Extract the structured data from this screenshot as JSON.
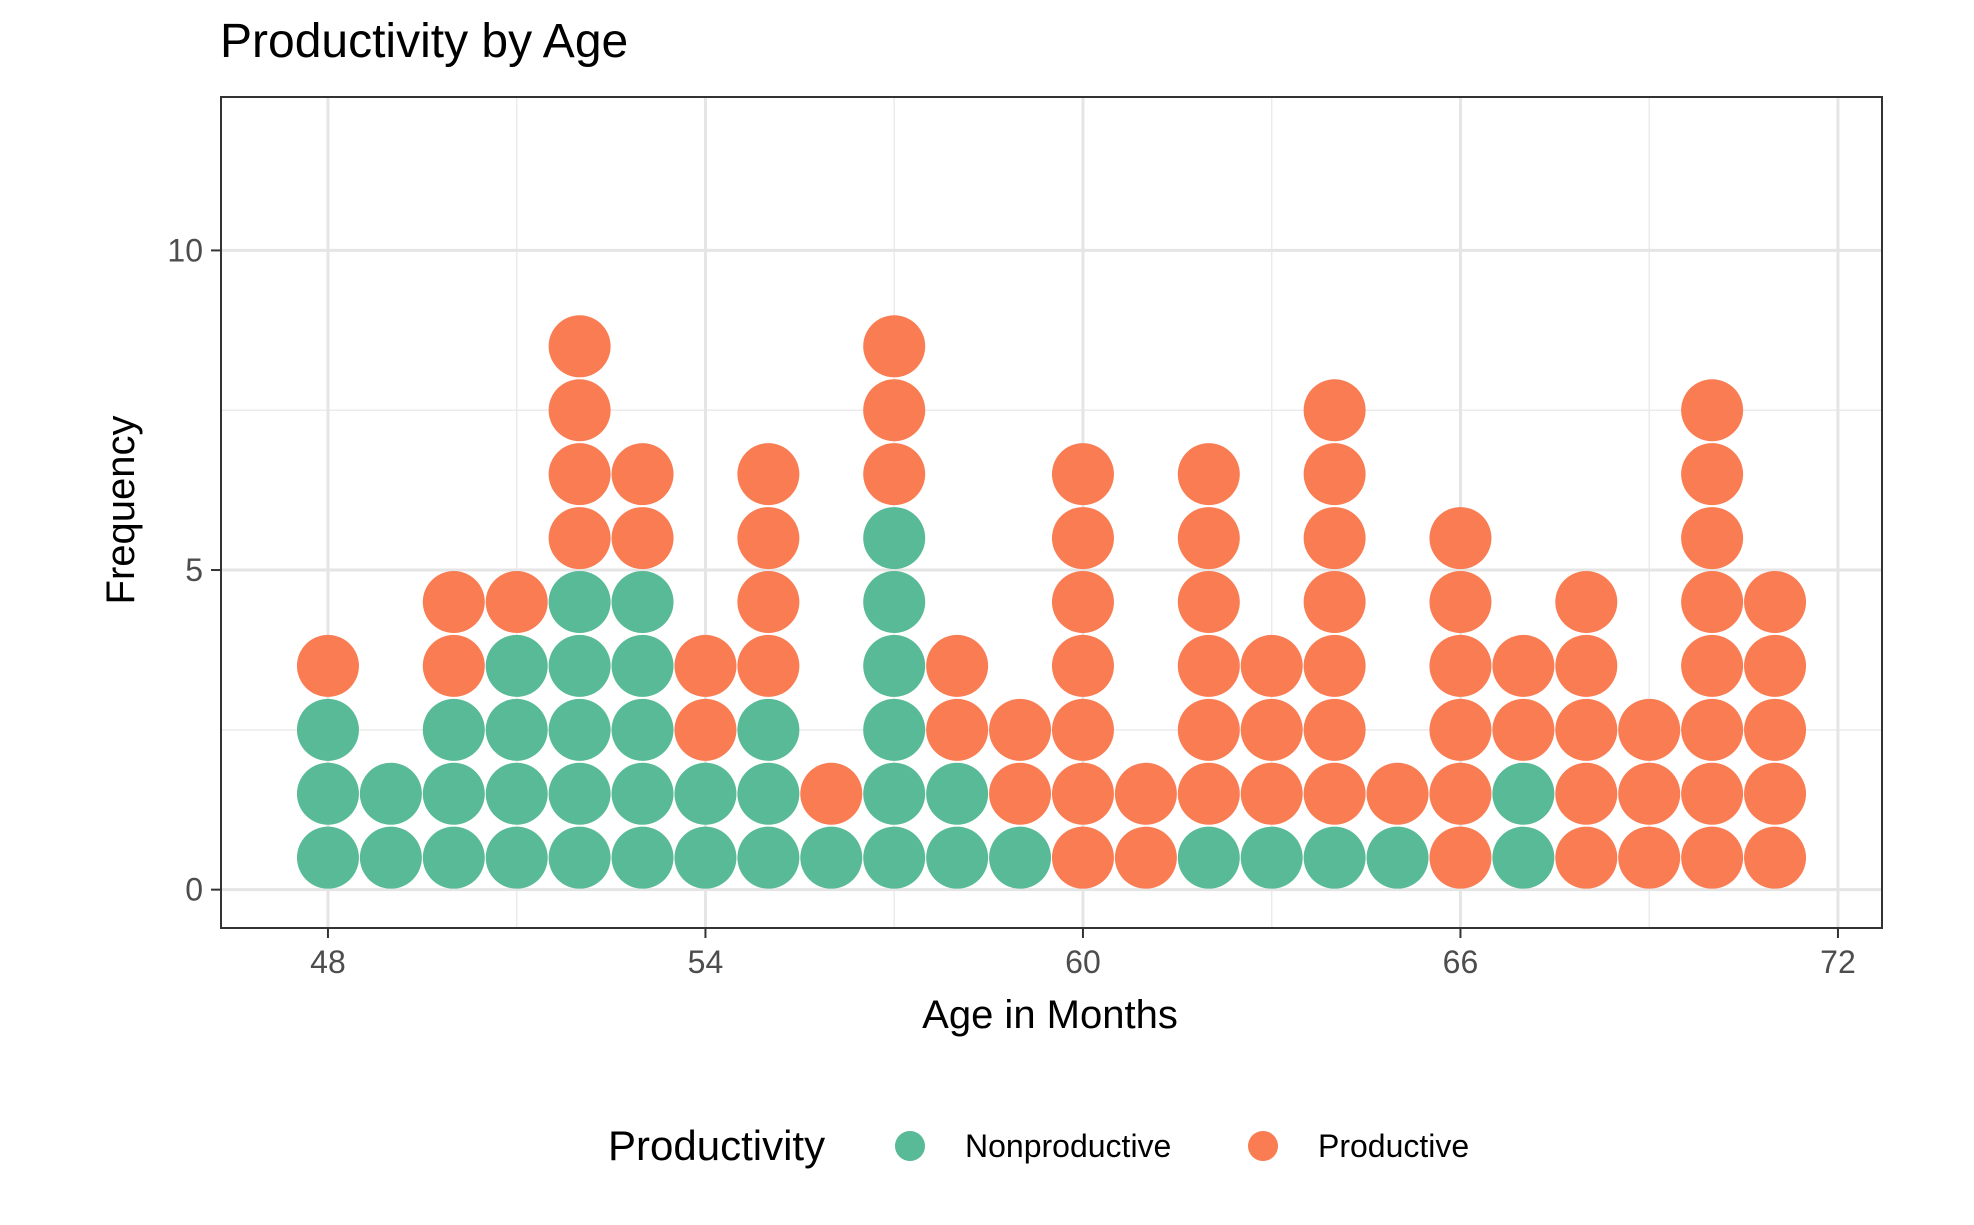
{
  "chart_data": {
    "type": "scatter",
    "subtype": "dotplot",
    "title": "Productivity by Age",
    "xlabel": "Age in Months",
    "ylabel": "Frequency",
    "xlim": [
      46.3,
      72.7
    ],
    "ylim": [
      -0.6,
      12.4
    ],
    "xticks": [
      48,
      54,
      60,
      66,
      72
    ],
    "yticks": [
      0,
      5,
      10
    ],
    "grid": true,
    "legend": {
      "title": "Productivity",
      "position": "bottom",
      "entries": [
        {
          "label": "Nonproductive",
          "color": "#58BA96"
        },
        {
          "label": "Productive",
          "color": "#F97C52"
        }
      ]
    },
    "x": [
      48,
      49,
      50,
      51,
      52,
      53,
      54,
      55,
      56,
      57,
      58,
      59,
      60,
      61,
      62,
      63,
      64,
      65,
      66,
      67,
      68,
      69,
      70,
      71
    ],
    "series": [
      {
        "name": "Nonproductive",
        "color": "#58BA96",
        "values": [
          3,
          2,
          3,
          4,
          5,
          5,
          2,
          3,
          1,
          6,
          2,
          1,
          0,
          0,
          1,
          1,
          1,
          1,
          0,
          2,
          0,
          0,
          0,
          0
        ]
      },
      {
        "name": "Productive",
        "color": "#F97C52",
        "values": [
          1,
          0,
          2,
          1,
          4,
          2,
          2,
          4,
          1,
          3,
          2,
          2,
          7,
          2,
          6,
          3,
          7,
          1,
          6,
          2,
          5,
          3,
          8,
          5
        ]
      }
    ]
  }
}
